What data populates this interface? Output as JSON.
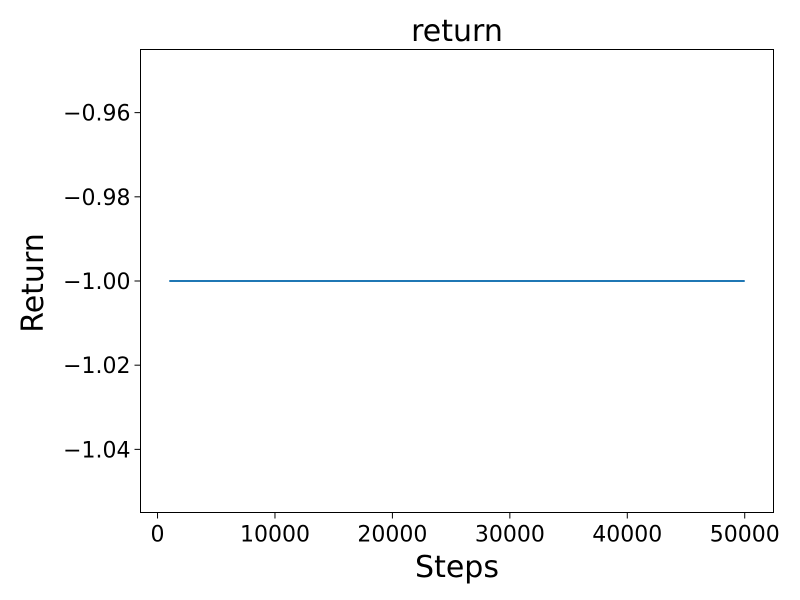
{
  "chart_data": {
    "type": "line",
    "title": "return",
    "xlabel": "Steps",
    "ylabel": "Return",
    "xlim": [
      -1450,
      52450
    ],
    "ylim": [
      -1.055,
      -0.945
    ],
    "x_ticks": [
      0,
      10000,
      20000,
      30000,
      40000,
      50000
    ],
    "x_tick_labels": [
      "0",
      "10000",
      "20000",
      "30000",
      "40000",
      "50000"
    ],
    "y_ticks": [
      -0.96,
      -0.98,
      -1.0,
      -1.02,
      -1.04
    ],
    "y_tick_labels": [
      "−0.96",
      "−0.98",
      "−1.00",
      "−1.02",
      "−1.04"
    ],
    "grid": false,
    "series": [
      {
        "color": "#1f77b4",
        "x": [
          1000,
          50000
        ],
        "y": [
          -1.0,
          -1.0
        ]
      }
    ]
  }
}
